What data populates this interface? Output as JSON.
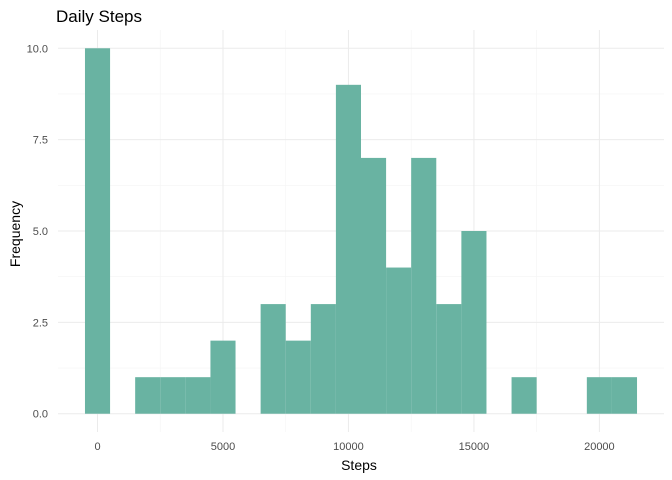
{
  "chart_data": {
    "type": "bar",
    "title": "Daily Steps",
    "xlabel": "Steps",
    "ylabel": "Frequency",
    "bin_width": 1000,
    "bins": [
      {
        "start": -500,
        "end": 500,
        "count": 10
      },
      {
        "start": 500,
        "end": 1500,
        "count": 0
      },
      {
        "start": 1500,
        "end": 2500,
        "count": 1
      },
      {
        "start": 2500,
        "end": 3500,
        "count": 1
      },
      {
        "start": 3500,
        "end": 4500,
        "count": 1
      },
      {
        "start": 4500,
        "end": 5500,
        "count": 2
      },
      {
        "start": 5500,
        "end": 6500,
        "count": 0
      },
      {
        "start": 6500,
        "end": 7500,
        "count": 3
      },
      {
        "start": 7500,
        "end": 8500,
        "count": 2
      },
      {
        "start": 8500,
        "end": 9500,
        "count": 3
      },
      {
        "start": 9500,
        "end": 10500,
        "count": 9
      },
      {
        "start": 10500,
        "end": 11500,
        "count": 7
      },
      {
        "start": 11500,
        "end": 12500,
        "count": 4
      },
      {
        "start": 12500,
        "end": 13500,
        "count": 7
      },
      {
        "start": 13500,
        "end": 14500,
        "count": 3
      },
      {
        "start": 14500,
        "end": 15500,
        "count": 5
      },
      {
        "start": 15500,
        "end": 16500,
        "count": 0
      },
      {
        "start": 16500,
        "end": 17500,
        "count": 1
      },
      {
        "start": 17500,
        "end": 18500,
        "count": 0
      },
      {
        "start": 18500,
        "end": 19500,
        "count": 0
      },
      {
        "start": 19500,
        "end": 20500,
        "count": 1
      },
      {
        "start": 20500,
        "end": 21500,
        "count": 1
      }
    ],
    "x_ticks": [
      {
        "value": 0,
        "label": "0"
      },
      {
        "value": 5000,
        "label": "5000"
      },
      {
        "value": 10000,
        "label": "10000"
      },
      {
        "value": 15000,
        "label": "15000"
      },
      {
        "value": 20000,
        "label": "20000"
      }
    ],
    "y_ticks": [
      {
        "value": 0,
        "label": "0.0"
      },
      {
        "value": 2.5,
        "label": "2.5"
      },
      {
        "value": 5,
        "label": "5.0"
      },
      {
        "value": 7.5,
        "label": "7.5"
      },
      {
        "value": 10,
        "label": "10.0"
      }
    ],
    "xlim": [
      -1575,
      22575
    ],
    "ylim": [
      -0.5,
      10.5
    ],
    "bar_color": "#69b3a2",
    "grid": true,
    "legend": false
  }
}
